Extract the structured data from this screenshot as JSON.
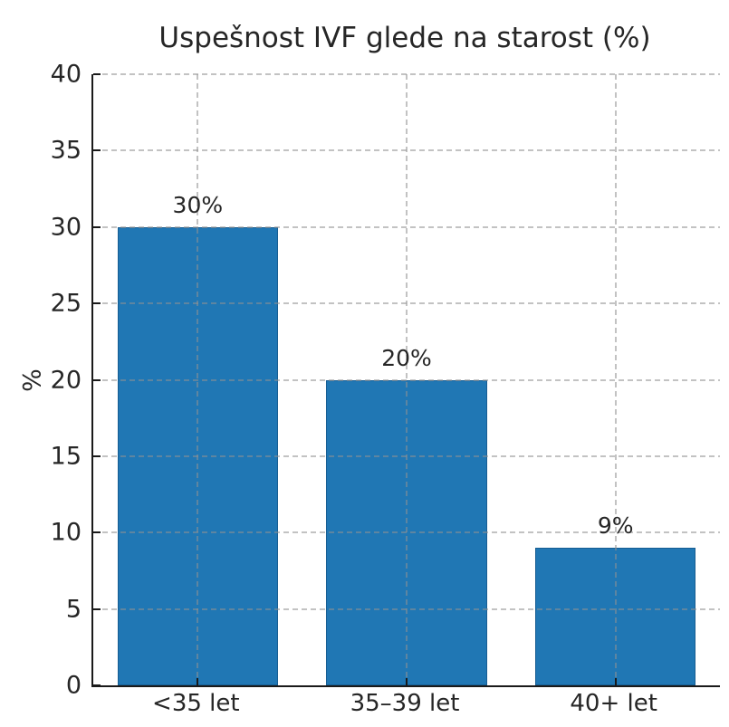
{
  "chart_data": {
    "type": "bar",
    "title": "Uspešnost IVF glede na starost (%)",
    "xlabel": "",
    "ylabel": "%",
    "categories": [
      "<35 let",
      "35–39 let",
      "40+ let"
    ],
    "values": [
      30,
      20,
      9
    ],
    "bar_labels": [
      "30%",
      "20%",
      "9%"
    ],
    "yticks": [
      0,
      5,
      10,
      15,
      20,
      25,
      30,
      35,
      40
    ],
    "ylim": [
      0,
      40
    ],
    "grid": "dashed gridlines on both axes, drawn above bars",
    "tick_direction": "in",
    "legend_position": "none",
    "colors": {
      "bar_fill": "#2077b4",
      "bar_edge": "#175d92",
      "grid": "#c9c9c9",
      "axis": "#1a1a1a",
      "text": "#262626",
      "background": "#ffffff"
    }
  }
}
